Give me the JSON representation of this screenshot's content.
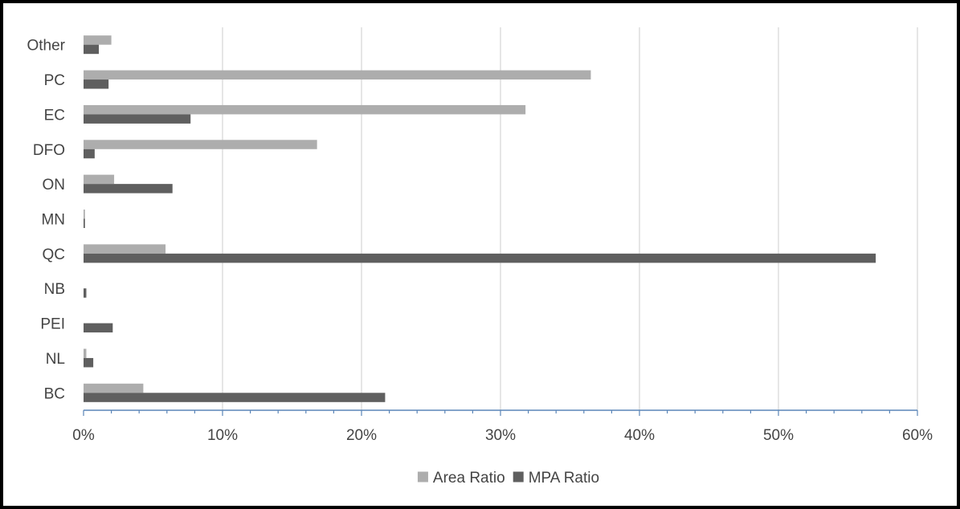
{
  "chart_data": {
    "type": "bar",
    "orientation": "horizontal",
    "categories": [
      "BC",
      "NL",
      "PEI",
      "NB",
      "QC",
      "MN",
      "ON",
      "DFO",
      "EC",
      "PC",
      "Other"
    ],
    "series": [
      {
        "name": "Area Ratio",
        "color": "#adadad",
        "values": [
          0.043,
          0.002,
          0.0,
          0.0,
          0.059,
          0.001,
          0.022,
          0.168,
          0.318,
          0.365,
          0.02
        ]
      },
      {
        "name": "MPA Ratio",
        "color": "#5f5f5f",
        "values": [
          0.217,
          0.007,
          0.021,
          0.002,
          0.57,
          0.001,
          0.064,
          0.008,
          0.077,
          0.018,
          0.011
        ]
      }
    ],
    "xlim": [
      0,
      0.6
    ],
    "xticks": [
      0,
      0.1,
      0.2,
      0.3,
      0.4,
      0.5,
      0.6
    ],
    "xtick_labels": [
      "0%",
      "10%",
      "20%",
      "30%",
      "40%",
      "50%",
      "60%"
    ],
    "grid": "vertical",
    "legend_position": "bottom",
    "title": "",
    "xlabel": "",
    "ylabel": ""
  }
}
